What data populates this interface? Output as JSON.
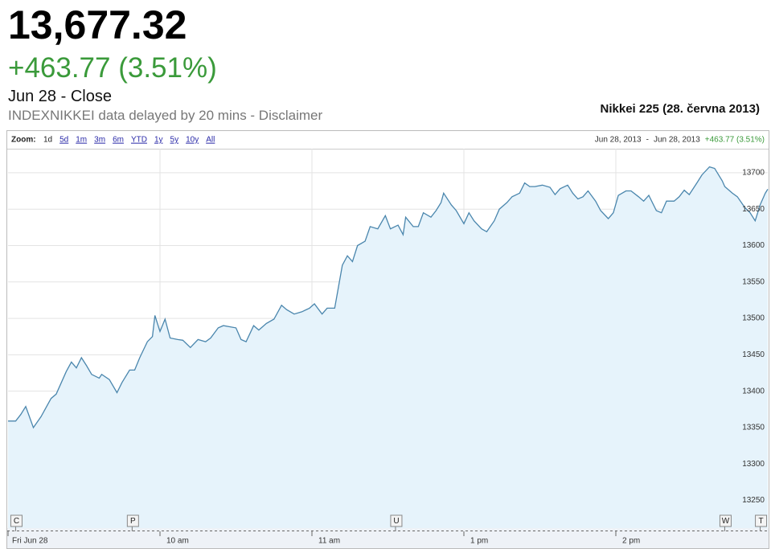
{
  "header": {
    "price": "13,677.32",
    "change": "+463.77 (3.51%)",
    "status": "Jun 28 - Close",
    "note": "INDEXNIKKEI data delayed by 20 mins - Disclaimer"
  },
  "toolbar": {
    "zoom_label": "Zoom:",
    "zoom_options": [
      "1d",
      "5d",
      "1m",
      "3m",
      "6m",
      "YTD",
      "1y",
      "5y",
      "10y",
      "All"
    ],
    "range_start": "Jun 28, 2013",
    "range_separator": "-",
    "range_end": "Jun 28, 2013"
  },
  "chart_data": {
    "type": "area",
    "title": "Nikkei 225 (28. června 2013)",
    "color": "#4a86ad",
    "fill_color": "#e6f3fb",
    "grid": true,
    "x": [
      0,
      3,
      5,
      7,
      10,
      13,
      17,
      19,
      23,
      25,
      27,
      29,
      31,
      33,
      36,
      37,
      40,
      43,
      45,
      48,
      50,
      52,
      55,
      57,
      58,
      60,
      62,
      64,
      67,
      69,
      72,
      75,
      78,
      80,
      83,
      85,
      90,
      92,
      94,
      97,
      99,
      102,
      105,
      108,
      110,
      113,
      116,
      119,
      121,
      124,
      126,
      129,
      132,
      134,
      136,
      138,
      141,
      143,
      146,
      149,
      151,
      154,
      156,
      157,
      160,
      162,
      164,
      167,
      169,
      171,
      172,
      175,
      177,
      180,
      182,
      184,
      187,
      189,
      192,
      194,
      197,
      199,
      202,
      204,
      206,
      208,
      211,
      214,
      216,
      218,
      221,
      223,
      225,
      227,
      229,
      232,
      234,
      237,
      239,
      241,
      244,
      246,
      249,
      251,
      253,
      256,
      258,
      260,
      263,
      265,
      267,
      269,
      272,
      274,
      277,
      279,
      282,
      283,
      286,
      288,
      291,
      293,
      295,
      297,
      299,
      300
    ],
    "values": [
      13359,
      13359,
      13368,
      13379,
      13350,
      13365,
      13390,
      13396,
      13427,
      13440,
      13432,
      13446,
      13435,
      13423,
      13418,
      13423,
      13416,
      13398,
      13412,
      13429,
      13429,
      13446,
      13468,
      13475,
      13504,
      13482,
      13499,
      13473,
      13471,
      13470,
      13460,
      13471,
      13468,
      13473,
      13487,
      13490,
      13487,
      13471,
      13468,
      13490,
      13484,
      13493,
      13499,
      13518,
      13512,
      13506,
      13509,
      13514,
      13520,
      13506,
      13514,
      13514,
      13573,
      13586,
      13578,
      13600,
      13606,
      13626,
      13623,
      13641,
      13623,
      13628,
      13615,
      13639,
      13626,
      13626,
      13645,
      13639,
      13648,
      13659,
      13672,
      13656,
      13648,
      13630,
      13645,
      13634,
      13623,
      13619,
      13634,
      13650,
      13659,
      13667,
      13672,
      13686,
      13681,
      13681,
      13683,
      13680,
      13670,
      13678,
      13683,
      13672,
      13664,
      13667,
      13675,
      13661,
      13648,
      13637,
      13645,
      13669,
      13675,
      13675,
      13667,
      13661,
      13669,
      13648,
      13645,
      13661,
      13661,
      13667,
      13676,
      13670,
      13686,
      13697,
      13708,
      13706,
      13689,
      13681,
      13672,
      13667,
      13652,
      13645,
      13634,
      13656,
      13672,
      13677.32
    ],
    "xlim": [
      0,
      300
    ],
    "ylim": [
      13212,
      13733
    ],
    "xticks": [
      {
        "value": 0,
        "label": "Fri Jun 28"
      },
      {
        "value": 60,
        "label": "10 am"
      },
      {
        "value": 120,
        "label": "11 am"
      },
      {
        "value": 180,
        "label": "1 pm"
      },
      {
        "value": 240,
        "label": "2 pm"
      }
    ],
    "yticks": [
      13250,
      13300,
      13350,
      13400,
      13450,
      13500,
      13550,
      13600,
      13650,
      13700
    ],
    "annotations": [
      {
        "x": 3,
        "label": "C"
      },
      {
        "x": 49,
        "label": "P"
      },
      {
        "x": 153,
        "label": "U"
      },
      {
        "x": 283,
        "label": "W"
      },
      {
        "x": 297,
        "label": "T"
      }
    ]
  }
}
